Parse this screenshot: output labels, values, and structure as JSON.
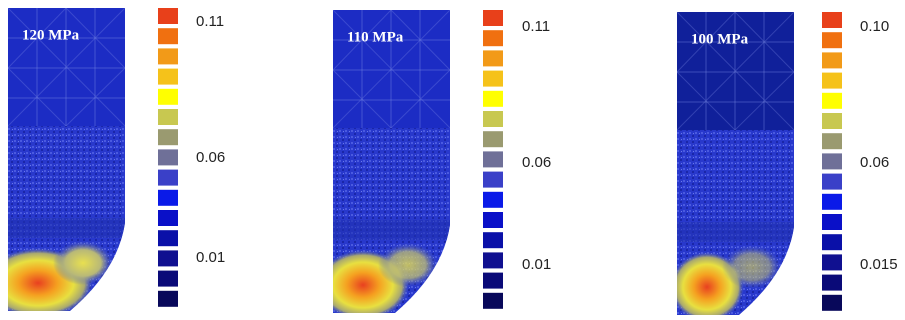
{
  "panels": [
    {
      "label": "120 MPa",
      "colorbar_labels": [
        "0.11",
        "0.06",
        "0.01"
      ]
    },
    {
      "label": "110 MPa",
      "colorbar_labels": [
        "0.11",
        "0.06",
        "0.01"
      ]
    },
    {
      "label": "100 MPa",
      "colorbar_labels": [
        "0.10",
        "0.06",
        "0.015"
      ]
    }
  ]
}
